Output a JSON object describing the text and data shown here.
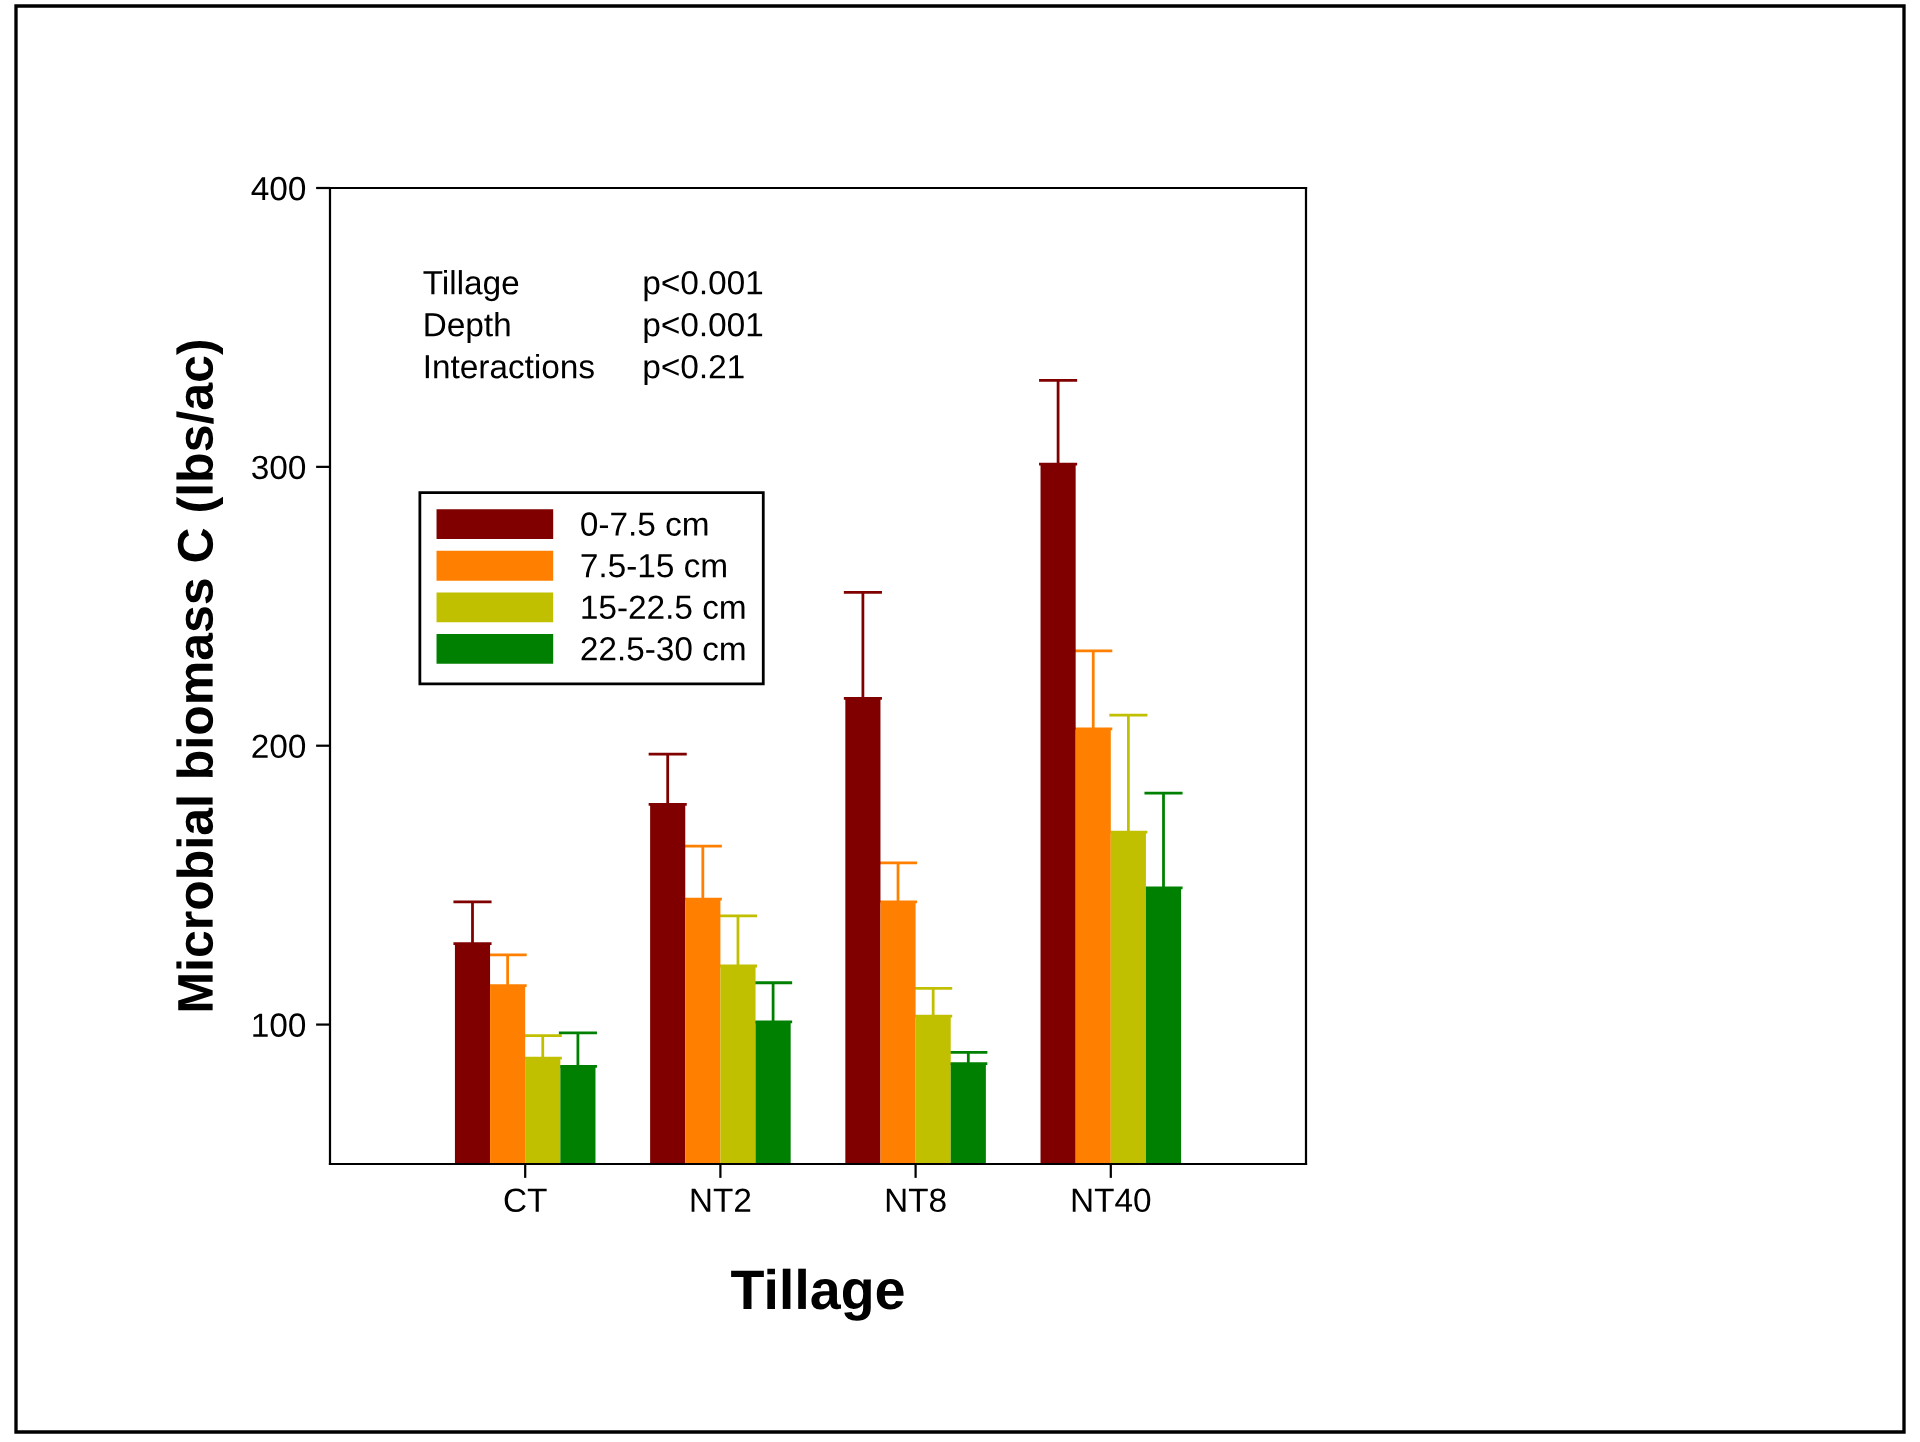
{
  "chart_data": {
    "type": "bar",
    "xlabel": "Tillage",
    "ylabel": "Microbial biomass C (lbs/ac)",
    "categories": [
      "CT",
      "NT2",
      "NT8",
      "NT40"
    ],
    "series": [
      {
        "name": "0-7.5 cm",
        "color": "#800000",
        "values": [
          129,
          179,
          217,
          301
        ],
        "errors": [
          [
            129,
            144
          ],
          [
            179,
            197
          ],
          [
            217,
            255
          ],
          [
            301,
            331
          ]
        ]
      },
      {
        "name": "7.5-15 cm",
        "color": "#ff8000",
        "values": [
          114,
          145,
          144,
          206
        ],
        "errors": [
          [
            114,
            125
          ],
          [
            145,
            164
          ],
          [
            144,
            158
          ],
          [
            206,
            234
          ]
        ]
      },
      {
        "name": "15-22.5 cm",
        "color": "#c0c000",
        "values": [
          88,
          121,
          103,
          169
        ],
        "errors": [
          [
            88,
            96
          ],
          [
            121,
            139
          ],
          [
            103,
            113
          ],
          [
            169,
            211
          ]
        ]
      },
      {
        "name": "22.5-30 cm",
        "color": "#008000",
        "values": [
          85,
          101,
          86,
          149
        ],
        "errors": [
          [
            85,
            97
          ],
          [
            101,
            115
          ],
          [
            86,
            90
          ],
          [
            149,
            183
          ]
        ]
      }
    ],
    "ylim": [
      50,
      400
    ],
    "yticks": [
      100,
      200,
      300,
      400
    ],
    "grid": false,
    "legend": "top left",
    "annotations": [
      "Tillage",
      "p<0.001",
      "Depth",
      "p<0.001",
      "Interactions",
      "p<0.21"
    ]
  }
}
